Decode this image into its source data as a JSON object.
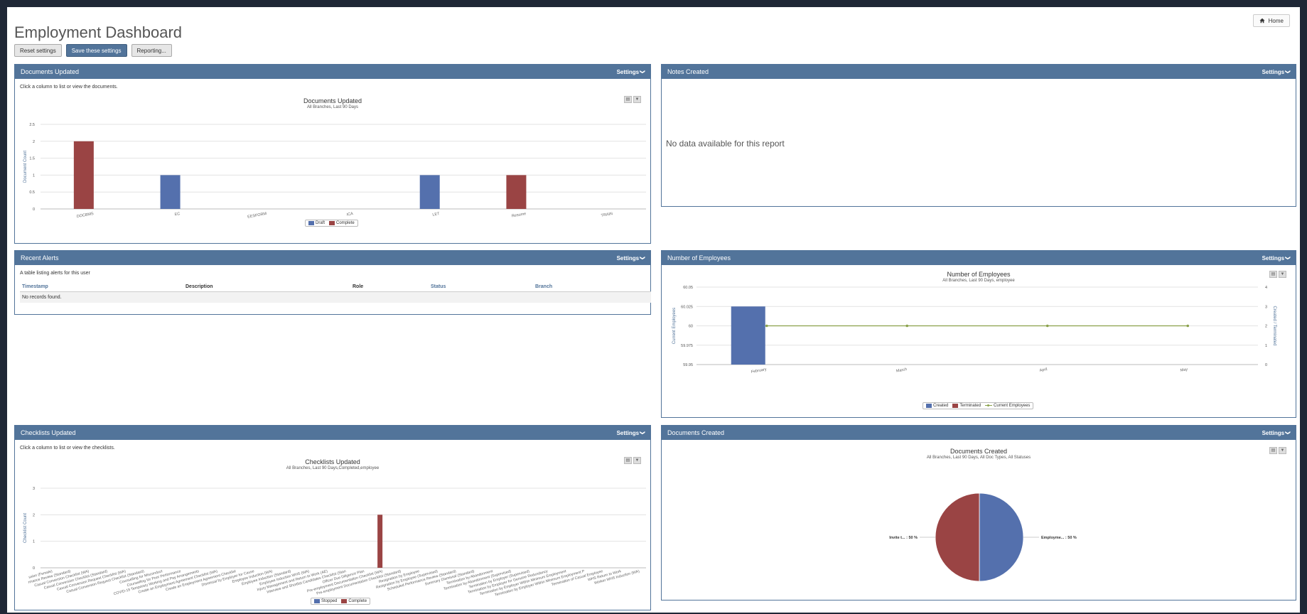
{
  "header": {
    "title": "Employment Dashboard",
    "home_label": "Home",
    "home_icon": "home-icon"
  },
  "toolbar": {
    "reset_label": "Reset settings",
    "save_label": "Save these settings",
    "reporting_label": "Reporting..."
  },
  "colors": {
    "panel_header": "#52749a",
    "series_blue": "#5470ad",
    "series_red": "#9a4444",
    "series_green": "#8aa14a"
  },
  "panels": {
    "documents_updated": {
      "title": "Documents Updated",
      "settings_label": "Settings",
      "hint": "Click a column to list or view the documents."
    },
    "notes_created": {
      "title": "Notes Created",
      "settings_label": "Settings",
      "no_data": "No data available for this report"
    },
    "recent_alerts": {
      "title": "Recent Alerts",
      "settings_label": "Settings",
      "hint": "A table listing alerts for this user",
      "columns": [
        "Timestamp",
        "Description",
        "Role",
        "Status",
        "Branch"
      ],
      "empty_message": "No records found."
    },
    "number_of_employees": {
      "title": "Number of Employees",
      "settings_label": "Settings"
    },
    "checklists_updated": {
      "title": "Checklists Updated",
      "settings_label": "Settings",
      "hint": "Click a column to list or view the checklists."
    },
    "documents_created": {
      "title": "Documents Created",
      "settings_label": "Settings"
    }
  },
  "chart_data": [
    {
      "id": "documents_updated",
      "type": "bar",
      "title": "Documents Updated",
      "subtitle": "All Branches, Last 90 Days",
      "ylabel": "Document Count",
      "ylim": [
        0,
        2.5
      ],
      "yticks": [
        "0",
        "0.5",
        "1",
        "1.5",
        "2",
        "2.5"
      ],
      "categories": [
        "DOCBMS",
        "EC",
        "EESFORM",
        "ICA",
        "LET",
        "Resume",
        "TRAIN"
      ],
      "series": [
        {
          "name": "Draft",
          "color": "#5470ad",
          "values": [
            0,
            1,
            0,
            0,
            1,
            0,
            0
          ]
        },
        {
          "name": "Complete",
          "color": "#9a4444",
          "values": [
            2,
            0,
            0,
            0,
            0,
            1,
            0
          ]
        }
      ],
      "legend": "bottom-center"
    },
    {
      "id": "number_of_employees",
      "type": "bar",
      "title": "Number of Employees",
      "subtitle": "All Branches, Last 90 Days, employee",
      "ylabel": "Current Employees",
      "y2label": "Created / Terminated",
      "ylim": [
        59.95,
        60.05
      ],
      "yticks": [
        "59.95",
        "59.975",
        "60",
        "60.025",
        "60.05"
      ],
      "y2lim": [
        0,
        4
      ],
      "y2ticks": [
        "0",
        "1",
        "2",
        "3",
        "4"
      ],
      "categories": [
        "February",
        "March",
        "April",
        "May"
      ],
      "series": [
        {
          "name": "Created",
          "color": "#5470ad",
          "axis": "right",
          "values": [
            3,
            0,
            0,
            0
          ]
        },
        {
          "name": "Terminated",
          "color": "#9a4444",
          "axis": "right",
          "values": [
            0,
            0,
            0,
            0
          ]
        },
        {
          "name": "Current Employees",
          "color": "#8aa14a",
          "type": "line",
          "axis": "left",
          "values": [
            60,
            60,
            60,
            60
          ]
        }
      ],
      "legend": "bottom-center"
    },
    {
      "id": "checklists_updated",
      "type": "bar",
      "title": "Checklists Updated",
      "subtitle": "All Branches, Last 90 Days,Completed,employee",
      "ylabel": "Checklist Count",
      "ylim": [
        0,
        3
      ],
      "yticks": [
        "0",
        "1",
        "2",
        "3"
      ],
      "categories": [
        "ssion (Female)",
        "rmance Review (Standard)",
        "Casual Conversion Checklist (WA)",
        "Casual Conversion Checklist (Standard)",
        "Casual Conversion Request Checklist (WA)",
        "Casual Conversion Request Checklist (Standard)",
        "Counselling for Misconduct",
        "Counselling for Poor Performance",
        "COVID-19 Temporary Working and Pay Arrangements",
        "Create an Employment Agreement Checklist (WA)",
        "Create an Employment Agreement Checklist",
        "Dismissal by Employer for Cause",
        "Employee Induction (WA)",
        "Employee Induction (Standard)",
        "Employee Induction WHS (WA)",
        "Injury Management and Return to Work (AE)",
        "Interview and Shortlist Candidates Checklist (Stan",
        "Officer Due Diligence Plan",
        "Pre-employment Documentation Checklist (WA)",
        "Pre-employment Documentation Checklist (Standard)",
        "Resignation by Employee",
        "Resignation by Employee (Supervised)",
        "Scheduled Performance Review (Standard)",
        "Summary Dismissal (Standard)",
        "Termination by Abandonment",
        "Termination by Abandonment (Supervised)",
        "Termination by Employer (Supervised)",
        "Termination by Employer for Genuine Redundancy",
        "Termination by Employer Within Minimum Employment",
        "Termination by Employer Within Minimum Employment P",
        "Termination of Casual Employee",
        "WHS Return to Work",
        "Worker WHS Induction (WA)"
      ],
      "series": [
        {
          "name": "Stopped",
          "color": "#5470ad",
          "values": [
            0,
            0,
            0,
            0,
            0,
            0,
            0,
            0,
            0,
            0,
            0,
            0,
            0,
            0,
            0,
            0,
            0,
            0,
            0,
            0,
            0,
            0,
            0,
            0,
            0,
            0,
            0,
            0,
            0,
            0,
            0,
            0,
            0
          ]
        },
        {
          "name": "Complete",
          "color": "#9a4444",
          "values": [
            0,
            0,
            0,
            0,
            0,
            0,
            0,
            0,
            0,
            0,
            0,
            0,
            0,
            0,
            0,
            0,
            0,
            0,
            2,
            0,
            0,
            0,
            0,
            0,
            0,
            0,
            0,
            0,
            0,
            0,
            0,
            0,
            0
          ]
        }
      ],
      "legend": "bottom-center"
    },
    {
      "id": "documents_created",
      "type": "pie",
      "title": "Documents Created",
      "subtitle": "All Branches, Last 90 Days, All Doc Types, All Statuses",
      "slices": [
        {
          "label": "Employme... : 50 %",
          "value": 50,
          "color": "#5470ad"
        },
        {
          "label": "Invite t... : 50 %",
          "value": 50,
          "color": "#9a4444"
        }
      ]
    }
  ]
}
